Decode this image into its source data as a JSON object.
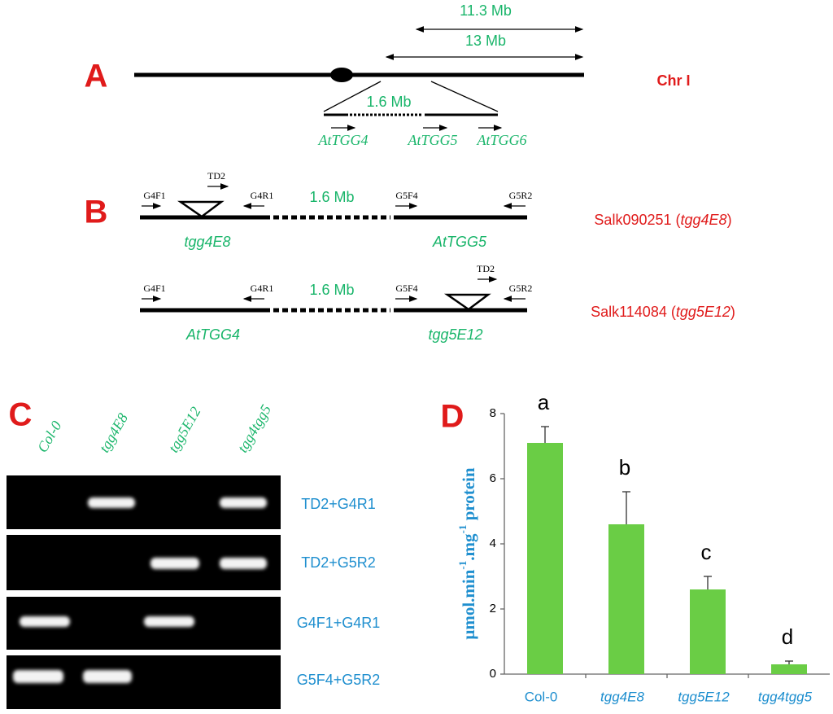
{
  "panel_a": {
    "label": "A",
    "chromosome": "Chr I",
    "distances": [
      "11.3 Mb",
      "13 Mb",
      "1.6 Mb"
    ],
    "genes": [
      "AtTGG4",
      "AtTGG5",
      "AtTGG6"
    ]
  },
  "panel_b": {
    "label": "B",
    "rows": [
      {
        "primers": [
          "G4F1",
          "TD2",
          "G4R1",
          "G5F4",
          "G5R2"
        ],
        "distance": "1.6 Mb",
        "genes": [
          "tgg4E8",
          "AtTGG5"
        ],
        "line": [
          "Salk090251 (",
          "tgg4E8",
          ")"
        ]
      },
      {
        "primers": [
          "G4F1",
          "G4R1",
          "G5F4",
          "TD2",
          "G5R2"
        ],
        "distance": "1.6 Mb",
        "genes": [
          "AtTGG4",
          "tgg5E12"
        ],
        "line": [
          "Salk114084 (",
          "tgg5E12",
          ")"
        ]
      }
    ]
  },
  "panel_c": {
    "label": "C",
    "lanes": [
      "Col-0",
      "tgg4E8",
      "tgg5E12",
      "tgg4tgg5"
    ],
    "primer_pairs": [
      "TD2+G4R1",
      "TD2+G5R2",
      "G4F1+G4R1",
      "G5F4+G5R2"
    ]
  },
  "chart_data": {
    "type": "bar",
    "panel_label": "D",
    "y_label": [
      "μmol.min",
      "-1",
      ".mg",
      "-1",
      " protein"
    ],
    "categories": [
      "Col-0",
      "tgg4E8",
      "tgg5E12",
      "tgg4tgg5"
    ],
    "values": [
      7.1,
      4.6,
      2.6,
      0.3
    ],
    "errors": [
      0.5,
      1.0,
      0.4,
      0.1
    ],
    "annotations": [
      "a",
      "b",
      "c",
      "d"
    ],
    "color": "#6acd45",
    "ylim": [
      0,
      8
    ],
    "yticks": [
      0,
      2,
      4,
      6,
      8
    ]
  }
}
